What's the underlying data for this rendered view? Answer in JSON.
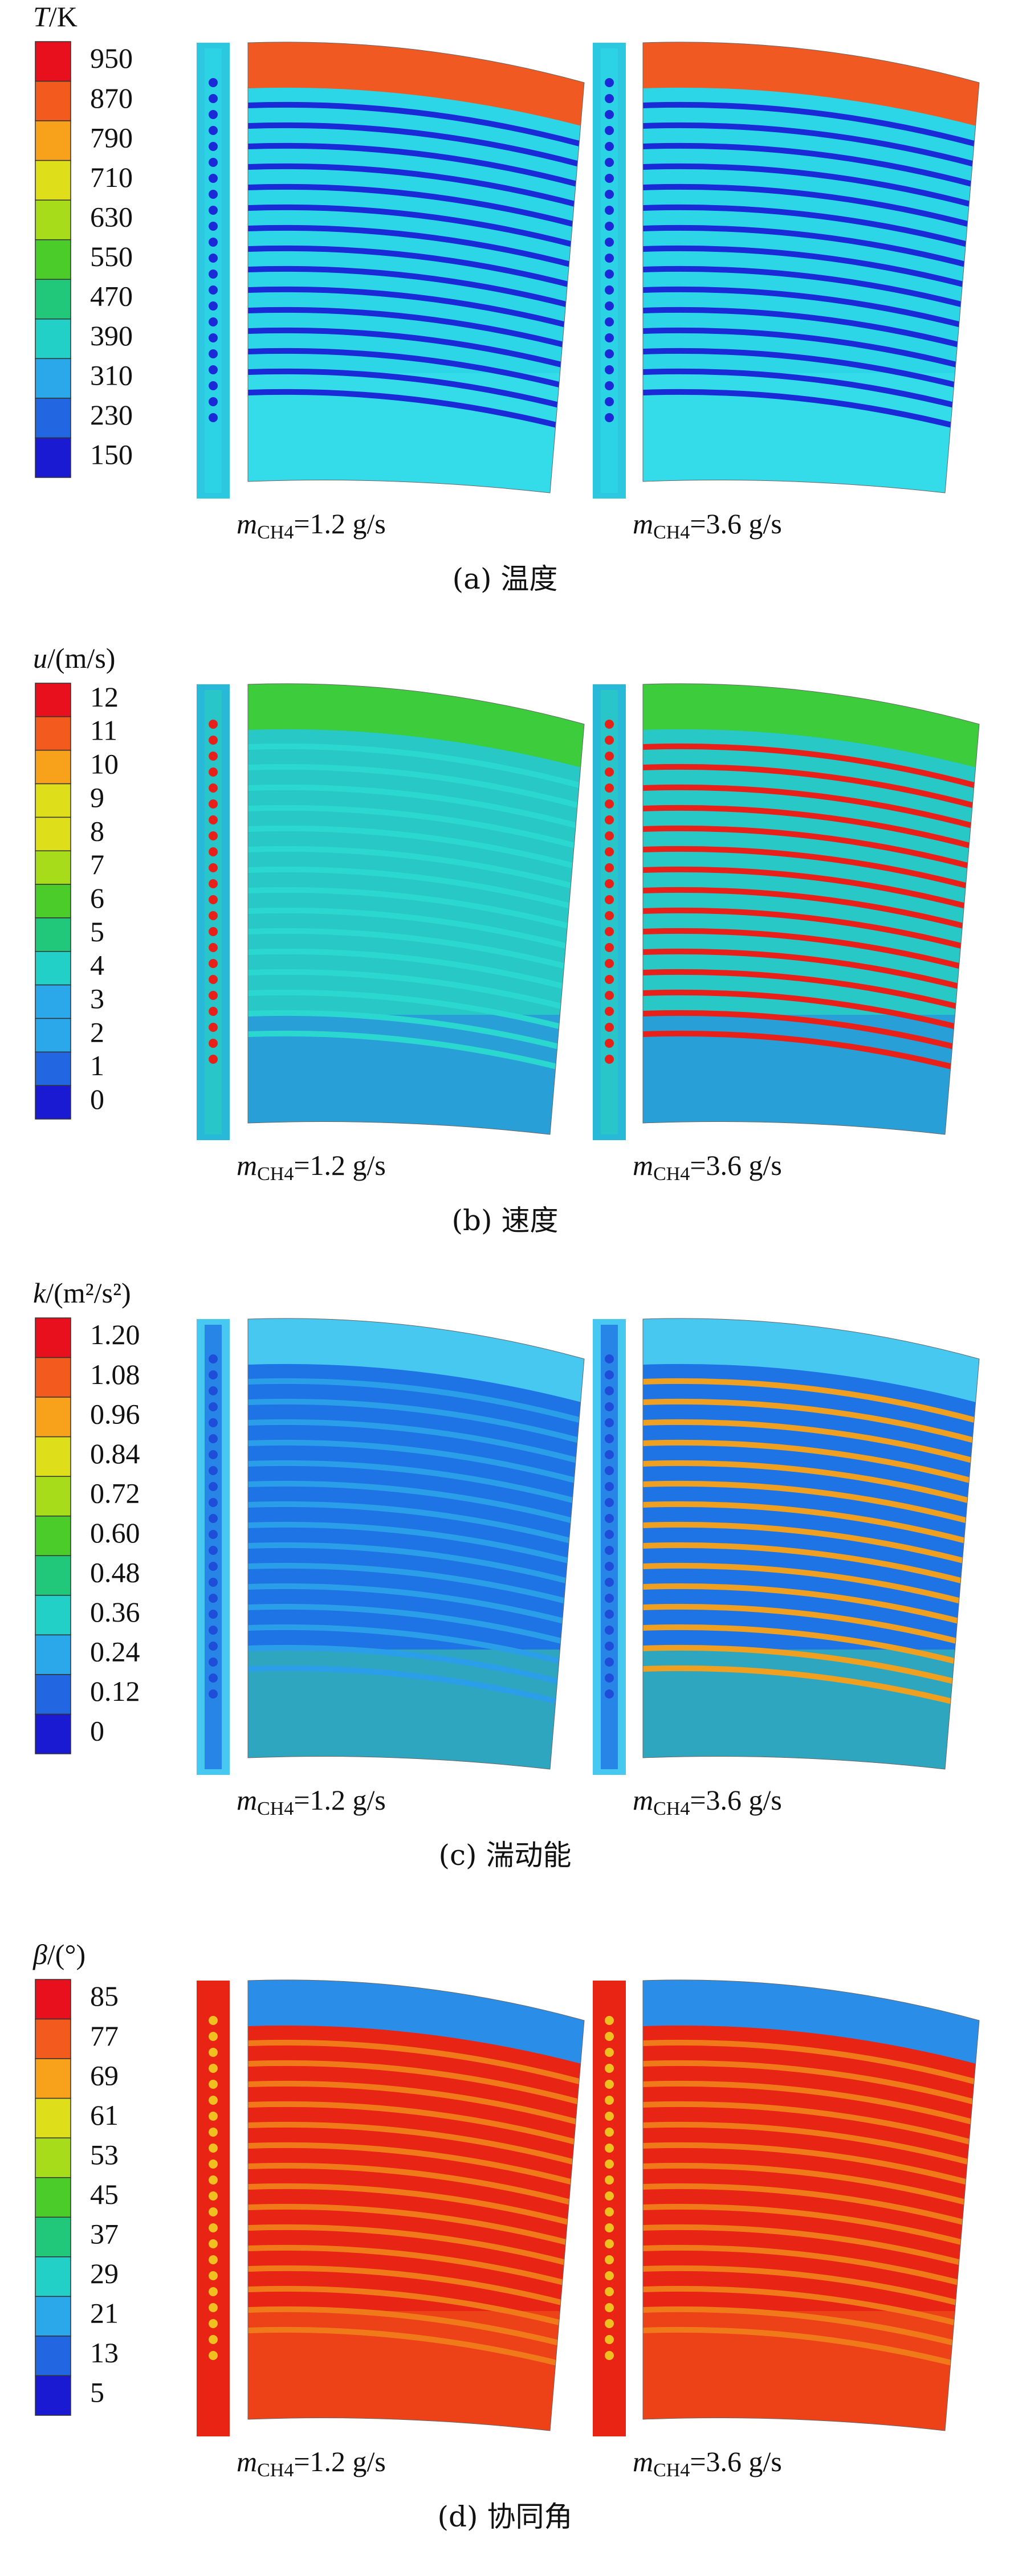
{
  "panels": [
    {
      "colorbar": {
        "symbol": "T",
        "unit": "/K",
        "ticks": [
          "950",
          "870",
          "790",
          "710",
          "630",
          "550",
          "470",
          "390",
          "310",
          "230",
          "150"
        ]
      },
      "left_label": {
        "symbol": "m",
        "subscript": "CH4",
        "text": "=1.2 g/s"
      },
      "right_label": {
        "symbol": "m",
        "subscript": "CH4",
        "text": "=3.6 g/s"
      },
      "caption": "(a) 温度"
    },
    {
      "colorbar": {
        "symbol": "u",
        "unit": "/(m/s)",
        "ticks": [
          "12",
          "11",
          "10",
          "9",
          "8",
          "7",
          "6",
          "5",
          "4",
          "3",
          "2",
          "1",
          "0"
        ]
      },
      "left_label": {
        "symbol": "m",
        "subscript": "CH4",
        "text": "=1.2 g/s"
      },
      "right_label": {
        "symbol": "m",
        "subscript": "CH4",
        "text": "=3.6 g/s"
      },
      "caption": "(b) 速度"
    },
    {
      "colorbar": {
        "symbol": "k",
        "unit": "/(m²/s²)",
        "ticks": [
          "1.20",
          "1.08",
          "0.96",
          "0.84",
          "0.72",
          "0.60",
          "0.48",
          "0.36",
          "0.24",
          "0.12",
          "0"
        ]
      },
      "left_label": {
        "symbol": "m",
        "subscript": "CH4",
        "text": "=1.2 g/s"
      },
      "right_label": {
        "symbol": "m",
        "subscript": "CH4",
        "text": "=3.6 g/s"
      },
      "caption": "(c) 湍动能"
    },
    {
      "colorbar": {
        "symbol": "β",
        "unit": "/(°)",
        "ticks": [
          "85",
          "77",
          "69",
          "61",
          "53",
          "45",
          "37",
          "29",
          "21",
          "13",
          "5"
        ]
      },
      "left_label": {
        "symbol": "m",
        "subscript": "CH4",
        "text": "=1.2 g/s"
      },
      "right_label": {
        "symbol": "m",
        "subscript": "CH4",
        "text": "=3.6 g/s"
      },
      "caption": "(d) 协同角"
    }
  ]
}
